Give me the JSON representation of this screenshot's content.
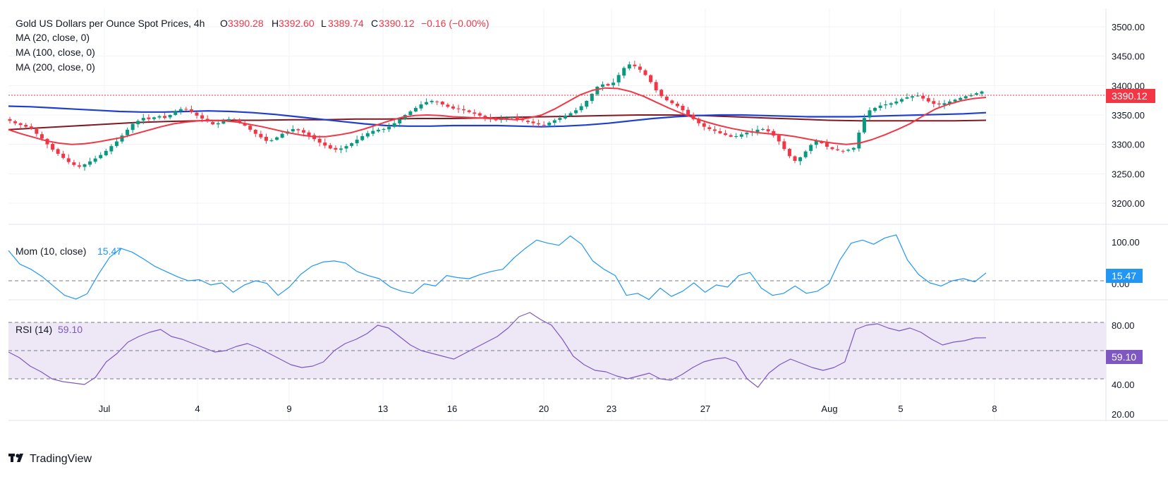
{
  "header": {
    "title": "Gold US Dollars per Ounce Spot Prices, 4h",
    "open_label": "O",
    "open": "3390.28",
    "high_label": "H",
    "high": "3392.60",
    "low_label": "L",
    "low": "3389.74",
    "close_label": "C",
    "close": "3390.12",
    "change": "−0.16 (−0.00%)",
    "ma20": "MA (20, close, 0)",
    "ma100": "MA (100, close, 0)",
    "ma200": "MA (200, close, 0)"
  },
  "price_axis": {
    "ticks": [
      "3500.00",
      "3450.00",
      "3400.00",
      "3350.00",
      "3300.00",
      "3250.00",
      "3200.00"
    ],
    "last_price": "3390.12"
  },
  "momentum": {
    "label": "Mom (10, close)",
    "value": "15.47",
    "ticks": [
      "100.00",
      "0.00"
    ]
  },
  "rsi": {
    "label": "RSI (14)",
    "value": "59.10",
    "ticks": [
      "80.00",
      "40.00",
      "20.00"
    ]
  },
  "time_axis": {
    "labels": [
      "Jul",
      "4",
      "9",
      "13",
      "16",
      "20",
      "23",
      "27",
      "Aug",
      "5",
      "8"
    ]
  },
  "branding": {
    "name": "TradingView"
  },
  "colors": {
    "up": "#089981",
    "down": "#f23645",
    "ma20": "#f23645",
    "ma100": "#1e3fcf",
    "ma200": "#801922",
    "momentum": "#2196f3",
    "rsi": "#7e57c2",
    "rsi_band": "#ede7f6"
  },
  "chart_data": {
    "type": "candlestick",
    "title": "Gold US Dollars per Ounce Spot Prices, 4h",
    "timeframe": "4h",
    "price_ylim": [
      3175,
      3520
    ],
    "x_labels": [
      "Jul",
      "4",
      "9",
      "13",
      "16",
      "20",
      "23",
      "27",
      "Aug",
      "5",
      "8"
    ],
    "close_series": [
      3340,
      3336,
      3333,
      3330,
      3326,
      3318,
      3310,
      3300,
      3291,
      3284,
      3277,
      3270,
      3265,
      3262,
      3266,
      3271,
      3276,
      3282,
      3289,
      3297,
      3305,
      3315,
      3325,
      3335,
      3340,
      3345,
      3343,
      3346,
      3348,
      3345,
      3350,
      3356,
      3360,
      3359,
      3355,
      3349,
      3344,
      3339,
      3334,
      3336,
      3340,
      3343,
      3342,
      3337,
      3332,
      3325,
      3318,
      3312,
      3306,
      3307,
      3312,
      3318,
      3322,
      3326,
      3324,
      3320,
      3315,
      3309,
      3303,
      3298,
      3293,
      3291,
      3293,
      3297,
      3302,
      3308,
      3314,
      3319,
      3323,
      3325,
      3326,
      3330,
      3336,
      3343,
      3350,
      3356,
      3362,
      3368,
      3372,
      3374,
      3372,
      3368,
      3364,
      3361,
      3360,
      3358,
      3355,
      3352,
      3349,
      3346,
      3343,
      3341,
      3343,
      3345,
      3346,
      3343,
      3341,
      3338,
      3336,
      3334,
      3333,
      3337,
      3341,
      3345,
      3349,
      3353,
      3358,
      3365,
      3374,
      3386,
      3398,
      3402,
      3400,
      3405,
      3418,
      3430,
      3436,
      3433,
      3427,
      3418,
      3406,
      3392,
      3382,
      3375,
      3370,
      3365,
      3358,
      3350,
      3343,
      3336,
      3330,
      3326,
      3323,
      3319,
      3316,
      3313,
      3314,
      3317,
      3320,
      3322,
      3325,
      3326,
      3322,
      3315,
      3305,
      3292,
      3280,
      3272,
      3278,
      3288,
      3299,
      3306,
      3302,
      3296,
      3292,
      3290,
      3289,
      3291,
      3294,
      3320,
      3345,
      3358,
      3362,
      3366,
      3368,
      3370,
      3373,
      3377,
      3380,
      3382,
      3383,
      3378,
      3373,
      3369,
      3368,
      3370,
      3373,
      3376,
      3379,
      3382,
      3384,
      3387,
      3390
    ],
    "ma20_series": [
      3325,
      3318,
      3312,
      3306,
      3302,
      3300,
      3301,
      3304,
      3308,
      3312,
      3318,
      3324,
      3330,
      3335,
      3338,
      3340,
      3341,
      3340,
      3338,
      3334,
      3330,
      3325,
      3320,
      3316,
      3313,
      3313,
      3316,
      3320,
      3326,
      3333,
      3340,
      3346,
      3349,
      3350,
      3349,
      3347,
      3346,
      3345,
      3344,
      3343,
      3342,
      3345,
      3350,
      3360,
      3372,
      3384,
      3392,
      3396,
      3395,
      3390,
      3382,
      3372,
      3362,
      3353,
      3345,
      3338,
      3332,
      3327,
      3323,
      3320,
      3318,
      3316,
      3313,
      3309,
      3305,
      3302,
      3300,
      3302,
      3308,
      3316,
      3325,
      3335,
      3348,
      3360,
      3368,
      3374,
      3378,
      3380
    ],
    "ma100_series": [
      3365,
      3364,
      3362,
      3360,
      3358,
      3356,
      3355,
      3355,
      3356,
      3357,
      3356,
      3354,
      3351,
      3347,
      3343,
      3339,
      3335,
      3332,
      3331,
      3331,
      3332,
      3332,
      3332,
      3331,
      3330,
      3331,
      3333,
      3336,
      3340,
      3344,
      3347,
      3349,
      3350,
      3350,
      3349,
      3348,
      3347,
      3347,
      3347,
      3348,
      3349,
      3350,
      3351,
      3352,
      3354
    ],
    "ma200_series": [
      3325,
      3328,
      3331,
      3334,
      3337,
      3339,
      3340,
      3341,
      3341,
      3342,
      3342,
      3343,
      3343,
      3344,
      3344,
      3345,
      3346,
      3347,
      3348,
      3349,
      3350,
      3350,
      3349,
      3347,
      3345,
      3343,
      3341,
      3340,
      3340,
      3340,
      3340,
      3341
    ],
    "momentum_series": [
      58,
      32,
      22,
      8,
      -10,
      -28,
      -35,
      -25,
      12,
      45,
      62,
      55,
      42,
      28,
      18,
      8,
      0,
      2,
      -8,
      -4,
      -22,
      -8,
      0,
      -5,
      -28,
      -12,
      12,
      28,
      36,
      38,
      34,
      18,
      10,
      4,
      -12,
      -20,
      -24,
      -6,
      -10,
      10,
      6,
      4,
      12,
      18,
      22,
      44,
      62,
      78,
      72,
      68,
      86,
      70,
      38,
      22,
      10,
      -28,
      -24,
      -36,
      -14,
      -30,
      -20,
      -4,
      -22,
      -8,
      -12,
      10,
      16,
      -14,
      -28,
      -24,
      -10,
      -24,
      -20,
      -6,
      40,
      72,
      78,
      70,
      82,
      88,
      40,
      12,
      -4,
      -10,
      0,
      4,
      -2,
      15
    ],
    "rsi_series": [
      49,
      45,
      39,
      35,
      30,
      28,
      27,
      26,
      31,
      42,
      48,
      56,
      60,
      63,
      65,
      60,
      58,
      55,
      52,
      49,
      50,
      53,
      55,
      52,
      48,
      44,
      40,
      38,
      39,
      42,
      50,
      55,
      58,
      62,
      68,
      66,
      60,
      54,
      50,
      48,
      46,
      44,
      48,
      52,
      56,
      60,
      66,
      74,
      77,
      72,
      68,
      58,
      46,
      40,
      36,
      35,
      32,
      30,
      32,
      34,
      30,
      29,
      33,
      38,
      42,
      44,
      45,
      42,
      30,
      24,
      34,
      40,
      44,
      41,
      38,
      36,
      38,
      42,
      65,
      68,
      69,
      66,
      64,
      66,
      63,
      58,
      54,
      56,
      57,
      59,
      59.1
    ],
    "momentum_ylim": [
      -40,
      100
    ],
    "rsi_ylim": [
      18,
      84
    ],
    "rsi_levels": [
      70,
      50,
      30
    ]
  }
}
